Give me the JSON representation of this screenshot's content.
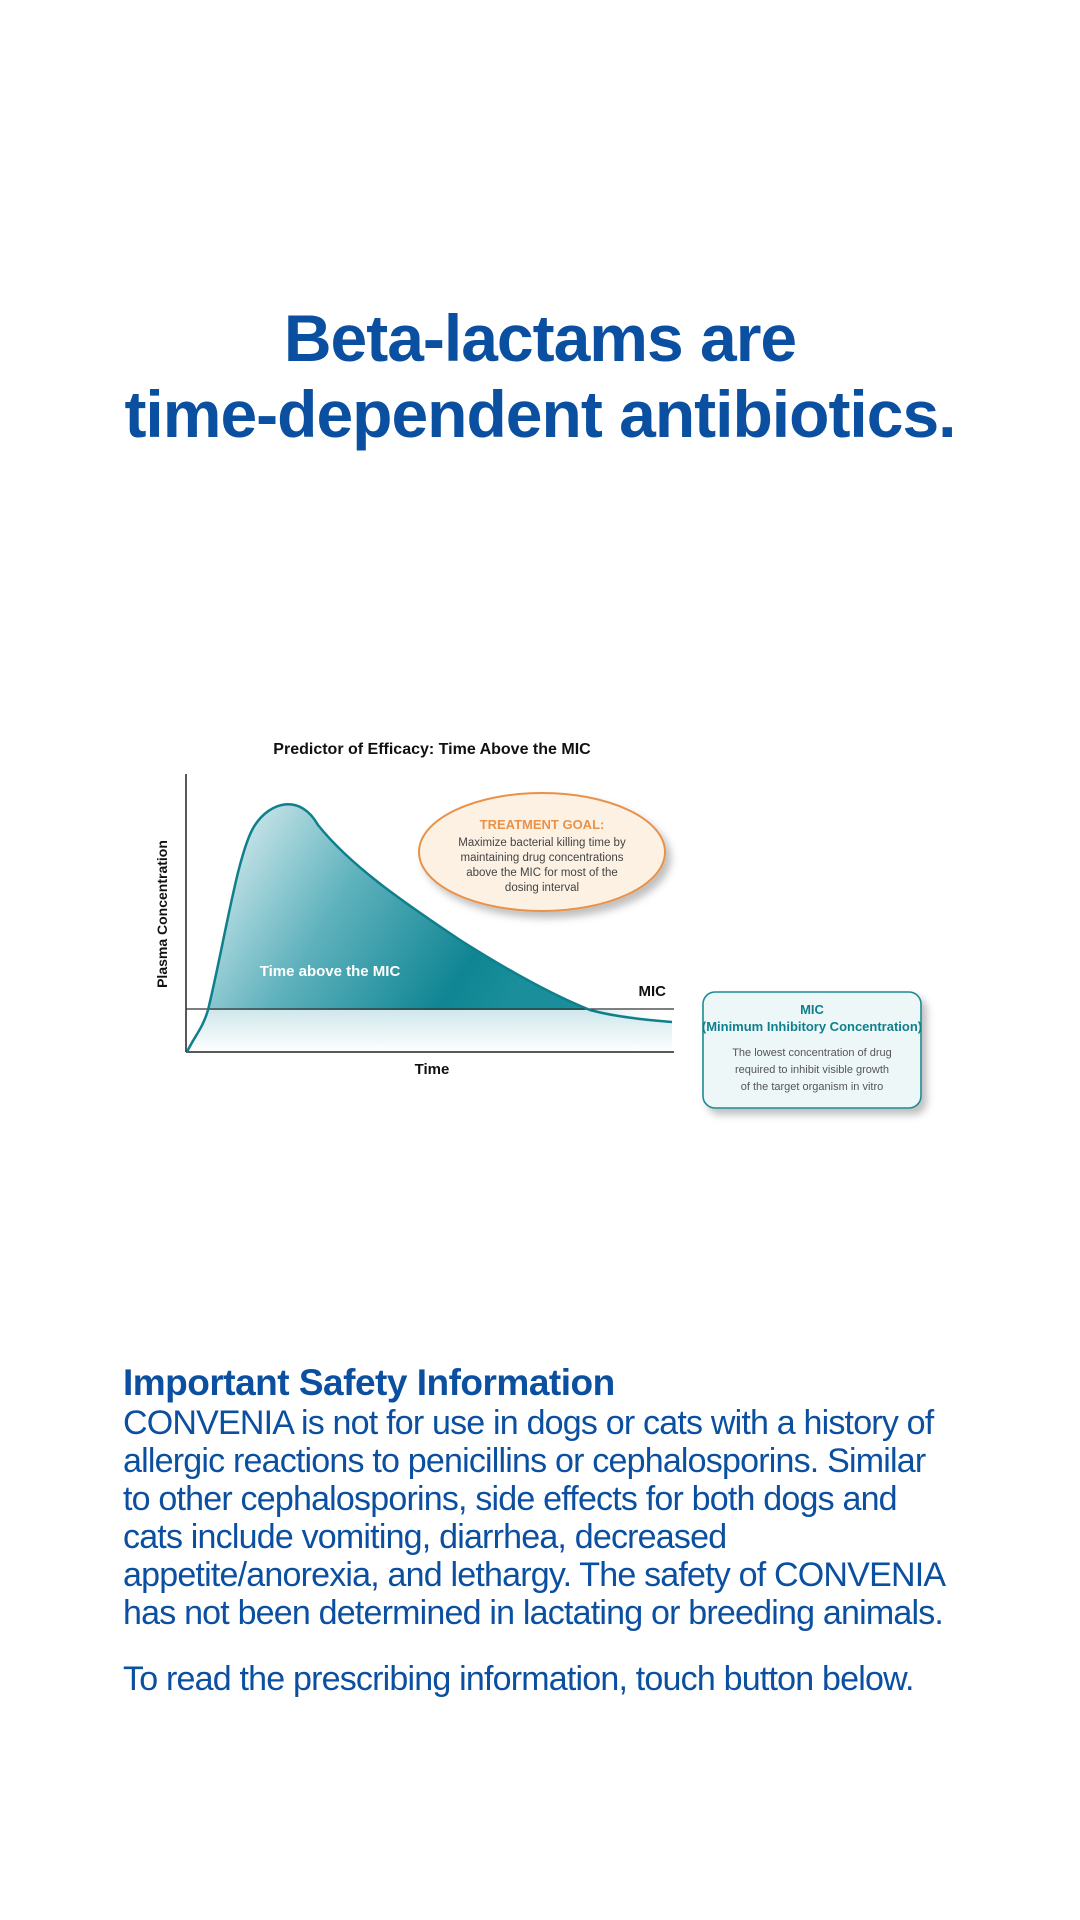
{
  "headline": {
    "line1": "Beta-lactams are",
    "line2": "time-dependent antibiotics."
  },
  "chart_data": {
    "type": "area",
    "title": "Predictor of Efficacy: Time Above the MIC",
    "xlabel": "Time",
    "ylabel": "Plasma Concentration",
    "threshold_label": "MIC",
    "area_label": "Time above the MIC",
    "treatment_goal": {
      "heading": "TREATMENT GOAL:",
      "lines": [
        "Maximize bacterial killing time by",
        "maintaining drug concentrations",
        "above the MIC for most of the",
        "dosing interval"
      ]
    },
    "mic_definition": {
      "heading_line1": "MIC",
      "heading_line2": "(Minimum Inhibitory Concentration)",
      "lines": [
        "The lowest concentration of drug",
        "required to inhibit visible growth",
        "of the target organism in vitro"
      ]
    },
    "colors": {
      "curve": "#0f7f8c",
      "fill_light": "#e6f3f5",
      "fill_dark": "#0f8593",
      "goal_border": "#e8924a",
      "goal_heading": "#e8924a",
      "goal_fill": "#fdf1e4",
      "mic_box_border": "#1f8a94",
      "mic_box_fill": "#eef7f8",
      "mic_heading": "#0f7f8c"
    }
  },
  "safety": {
    "title": "Important Safety Information",
    "body_lines": [
      "CONVENIA is not for use in dogs or cats with a history of",
      "allergic reactions to penicillins or cephalosporins. Similar",
      "to other cephalosporins, side effects for both dogs and",
      "cats include vomiting, diarrhea, decreased",
      "appetite/anorexia, and lethargy. The safety of CONVENIA",
      "has not been determined in lactating or breeding animals."
    ],
    "cta": "To read the prescribing information, touch button below."
  }
}
